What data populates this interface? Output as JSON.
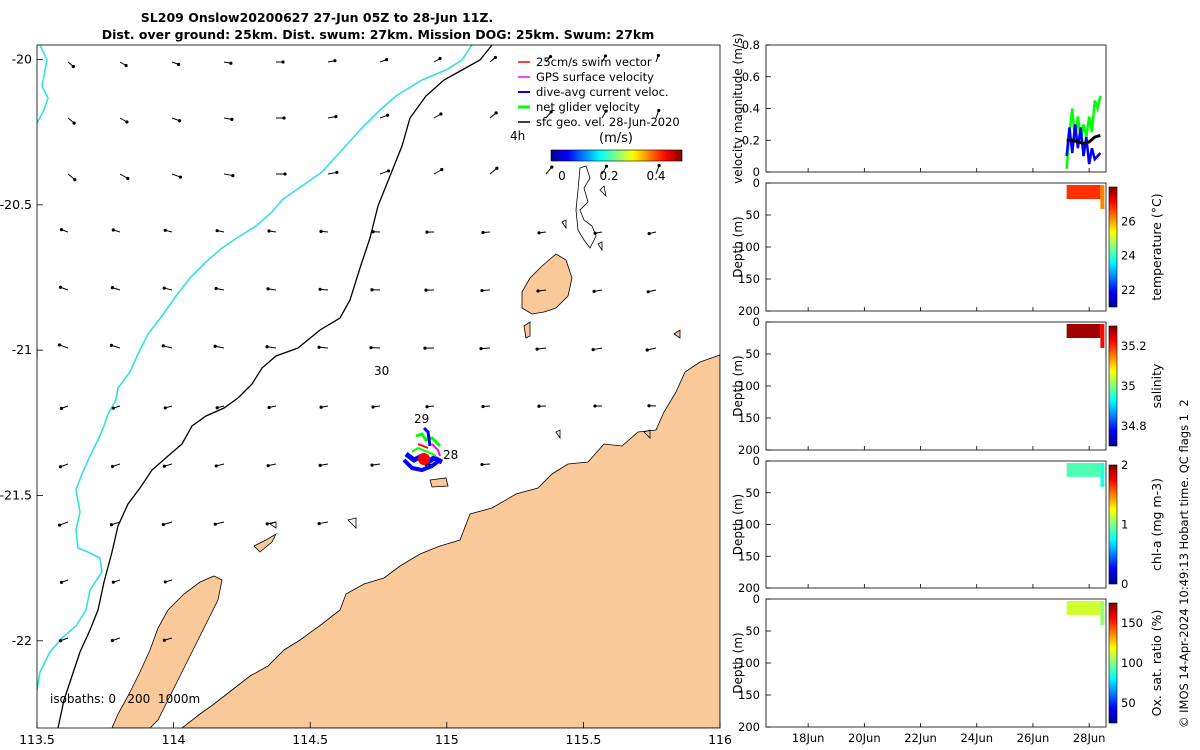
{
  "header": {
    "title_line1": "SL209 Onslow20200627 27-Jun 05Z to 28-Jun 11Z.",
    "title_line2": "Dist. over ground: 25km. Dist. swum: 27km. Mission DOG: 25km. Swum: 27km"
  },
  "footer": {
    "credit": "© IMOS 14-Apr-2024 10:49:13 Hobart time. QC flags 1  2"
  },
  "colors": {
    "land": "#f9c99a",
    "coast": "#33e1e1",
    "isobath": "#000000",
    "swim_vector": "#ff0000",
    "gps_velocity": "#ff00ff",
    "dive_avg": "#0000ff",
    "net_glider": "#00ff00",
    "sfc_geo": "#000000"
  },
  "chart_data": [
    {
      "type": "map",
      "x_ticks": [
        "113.5",
        "114",
        "114.5",
        "115",
        "115.5",
        "116"
      ],
      "y_ticks": [
        "-20",
        "-20.5",
        "-21",
        "-21.5",
        "-22"
      ],
      "xlim": [
        113.5,
        116
      ],
      "ylim": [
        -22.3,
        -19.95
      ],
      "legend": {
        "placement": "top-right",
        "entries": [
          {
            "label": "25cm/s swim vector",
            "color": "#ff0000"
          },
          {
            "label": "GPS surface velocity",
            "color": "#ff00ff"
          },
          {
            "label": "dive-avg current veloc.",
            "color": "#0000ff"
          },
          {
            "label": "net glider velocity",
            "color": "#00ff00"
          },
          {
            "label": "sfc geo. vel. 28-Jun-2020",
            "color": "#000000"
          }
        ]
      },
      "vector_interval_label": "4h",
      "colorbar": {
        "title": "(m/s)",
        "ticks": [
          "0",
          "0.2",
          "0.4"
        ],
        "range": [
          0,
          0.5
        ]
      },
      "isobaths_label": "isobaths: 0   200  1000m",
      "track_labels": [
        {
          "label": "30",
          "lon": 114.77,
          "lat": -21.07
        },
        {
          "label": "29",
          "lon": 114.95,
          "lat": -21.25
        },
        {
          "label": "28",
          "lon": 115.03,
          "lat": -21.37
        }
      ],
      "glider_position": {
        "lon": 114.95,
        "lat": -21.38
      }
    },
    {
      "type": "line",
      "ylabel": "velocity magnitude (m/s)",
      "ylim": [
        0,
        0.8
      ],
      "y_ticks": [
        "0",
        "0.2",
        "0.4",
        "0.6",
        "0.8"
      ],
      "series": [
        {
          "color": "#00ff00",
          "x": [
            27.2,
            27.3,
            27.4,
            27.5,
            27.6,
            27.7,
            27.8,
            27.9,
            28.0,
            28.1,
            28.2,
            28.3,
            28.4
          ],
          "values": [
            0.02,
            0.25,
            0.4,
            0.2,
            0.35,
            0.2,
            0.3,
            0.22,
            0.35,
            0.25,
            0.45,
            0.4,
            0.48
          ]
        },
        {
          "color": "#0000ff",
          "x": [
            27.2,
            27.3,
            27.4,
            27.5,
            27.6,
            27.7,
            27.8,
            27.9,
            28.0,
            28.1,
            28.2,
            28.3,
            28.4
          ],
          "values": [
            0.1,
            0.28,
            0.12,
            0.3,
            0.15,
            0.28,
            0.1,
            0.22,
            0.05,
            0.15,
            0.08,
            0.1,
            0.12
          ]
        },
        {
          "color": "#000000",
          "x": [
            27.2,
            27.4,
            27.6,
            27.8,
            28.0,
            28.2,
            28.4
          ],
          "values": [
            0.2,
            0.2,
            0.19,
            0.18,
            0.19,
            0.22,
            0.23
          ]
        }
      ]
    },
    {
      "type": "heatmap",
      "ylabel": "Depth (m)",
      "clabel": "temperature (°C)",
      "ylim": [
        200,
        0
      ],
      "y_ticks": [
        "0",
        "50",
        "100",
        "150",
        "200"
      ],
      "c_ticks": [
        "22",
        "24",
        "26"
      ],
      "clim": [
        21,
        28
      ],
      "data_x_range": [
        27.2,
        28.4
      ],
      "data_depth_max": 25,
      "dominant_value": 26.8
    },
    {
      "type": "heatmap",
      "ylabel": "Depth (m)",
      "clabel": "salinity",
      "ylim": [
        200,
        0
      ],
      "y_ticks": [
        "0",
        "50",
        "100",
        "150",
        "200"
      ],
      "c_ticks": [
        "34.8",
        "35",
        "35.2"
      ],
      "clim": [
        34.7,
        35.3
      ],
      "data_x_range": [
        27.2,
        28.4
      ],
      "data_depth_max": 25,
      "dominant_value": 35.28
    },
    {
      "type": "heatmap",
      "ylabel": "Depth (m)",
      "clabel": "chl-a (mg m-3)",
      "ylim": [
        200,
        0
      ],
      "y_ticks": [
        "0",
        "50",
        "100",
        "150",
        "200"
      ],
      "c_ticks": [
        "0",
        "1",
        "2"
      ],
      "clim": [
        0,
        2
      ],
      "data_x_range": [
        27.2,
        28.4
      ],
      "data_depth_max": 25,
      "dominant_value": 0.9
    },
    {
      "type": "heatmap",
      "ylabel": "Depth (m)",
      "clabel": "Ox. sat. ratio (%)",
      "ylim": [
        200,
        0
      ],
      "y_ticks": [
        "0",
        "50",
        "100",
        "150",
        "200"
      ],
      "c_ticks": [
        "50",
        "100",
        "150"
      ],
      "clim": [
        25,
        175
      ],
      "data_x_range": [
        27.2,
        28.4
      ],
      "data_depth_max": 25,
      "dominant_value": 112,
      "x_ticks": [
        "18Jun",
        "20Jun",
        "22Jun",
        "24Jun",
        "26Jun",
        "28Jun"
      ],
      "xlim": [
        16.5,
        28.6
      ]
    }
  ]
}
